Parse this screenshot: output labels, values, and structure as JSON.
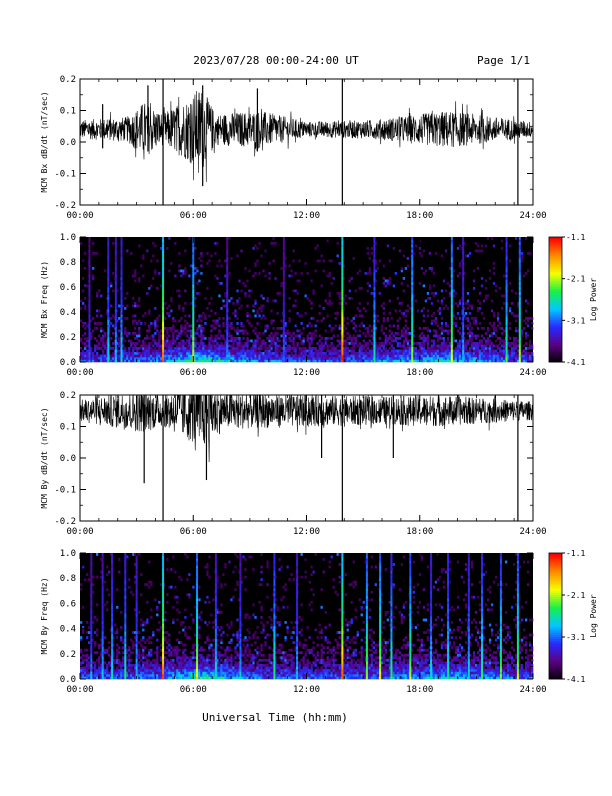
{
  "header": {
    "title": "2023/07/28  00:00-24:00 UT",
    "page": "Page 1/1"
  },
  "footer": {
    "xlabel": "Universal Time (hh:mm)"
  },
  "colors": {
    "background": "#ffffff",
    "axis": "#000000",
    "trace": "#000000",
    "spectrogram_background": "#000000",
    "colormap": [
      "#000000",
      "#5a0080",
      "#2a28ff",
      "#00c8ff",
      "#18f04a",
      "#f5ff00",
      "#ff8a00",
      "#ff0000"
    ]
  },
  "chart_data": [
    {
      "type": "line",
      "ylabel": "MCM Bx dB/dt (nT/sec)",
      "xlim": [
        0,
        24
      ],
      "ylim": [
        -0.2,
        0.2
      ],
      "x_ticks": [
        "00:00",
        "06:00",
        "12:00",
        "18:00",
        "24:00"
      ],
      "y_ticks": [
        "-0.2",
        "-0.1",
        "0.0",
        "0.1",
        "0.2"
      ],
      "y_tick_values": [
        -0.2,
        -0.1,
        0.0,
        0.1,
        0.2
      ],
      "baseline": 0.04,
      "typical_amplitude": 0.03,
      "envelope": [
        {
          "t": 0.0,
          "amp": 0.03
        },
        {
          "t": 2.5,
          "amp": 0.04
        },
        {
          "t": 3.4,
          "amp": 0.09
        },
        {
          "t": 4.4,
          "amp": 0.05
        },
        {
          "t": 5.7,
          "amp": 0.1
        },
        {
          "t": 6.4,
          "amp": 0.14
        },
        {
          "t": 7.2,
          "amp": 0.05
        },
        {
          "t": 9.5,
          "amp": 0.06
        },
        {
          "t": 12.0,
          "amp": 0.025
        },
        {
          "t": 15.5,
          "amp": 0.03
        },
        {
          "t": 19.5,
          "amp": 0.06
        },
        {
          "t": 22.0,
          "amp": 0.04
        },
        {
          "t": 24.0,
          "amp": 0.025
        }
      ],
      "spikes": [
        {
          "t": 4.4,
          "low": -0.2,
          "high": 0.2
        },
        {
          "t": 13.9,
          "low": -0.2,
          "high": 0.2
        },
        {
          "t": 23.2,
          "low": -0.2,
          "high": 0.2
        },
        {
          "t": 6.5,
          "low": -0.14,
          "high": 0.18
        },
        {
          "t": 3.6,
          "low": -0.03,
          "high": 0.18
        },
        {
          "t": 9.4,
          "low": -0.03,
          "high": 0.17
        },
        {
          "t": 1.2,
          "low": -0.02,
          "high": 0.12
        }
      ]
    },
    {
      "type": "heatmap",
      "ylabel": "MCM Bx Freq (Hz)",
      "xlim": [
        0,
        24
      ],
      "ylim": [
        0,
        1.0
      ],
      "x_ticks": [
        "00:00",
        "06:00",
        "12:00",
        "18:00",
        "24:00"
      ],
      "y_ticks": [
        "0.0",
        "0.2",
        "0.4",
        "0.6",
        "0.8",
        "1.0"
      ],
      "y_tick_values": [
        0.0,
        0.2,
        0.4,
        0.6,
        0.8,
        1.0
      ],
      "colorbar": {
        "label": "Log Power",
        "min": -4.1,
        "max": -1.1,
        "ticks": [
          "-1.1",
          "-2.1",
          "-3.1",
          "-4.1"
        ],
        "tick_values": [
          -1.1,
          -2.1,
          -3.1,
          -4.1
        ]
      },
      "stripes": [
        {
          "t": 0.5,
          "level": 0.35
        },
        {
          "t": 1.5,
          "level": 0.5
        },
        {
          "t": 1.9,
          "level": 0.45
        },
        {
          "t": 2.2,
          "level": 0.5
        },
        {
          "t": 4.4,
          "level": 0.95
        },
        {
          "t": 6.0,
          "level": 0.75
        },
        {
          "t": 7.8,
          "level": 0.4
        },
        {
          "t": 10.8,
          "level": 0.35
        },
        {
          "t": 13.9,
          "level": 1.0
        },
        {
          "t": 15.6,
          "level": 0.55
        },
        {
          "t": 17.6,
          "level": 0.7
        },
        {
          "t": 19.7,
          "level": 0.75
        },
        {
          "t": 20.3,
          "level": 0.45
        },
        {
          "t": 22.6,
          "level": 0.6
        },
        {
          "t": 23.3,
          "level": 0.7
        }
      ]
    },
    {
      "type": "line",
      "ylabel": "MCM By dB/dt (nT/sec)",
      "xlim": [
        0,
        24
      ],
      "ylim": [
        -0.2,
        0.2
      ],
      "x_ticks": [
        "00:00",
        "06:00",
        "12:00",
        "18:00",
        "24:00"
      ],
      "y_ticks": [
        "-0.2",
        "-0.1",
        "0.0",
        "0.1",
        "0.2"
      ],
      "y_tick_values": [
        -0.2,
        -0.1,
        0.0,
        0.1,
        0.2
      ],
      "baseline": 0.15,
      "typical_amplitude": 0.035,
      "envelope": [
        {
          "t": 0.0,
          "amp": 0.035
        },
        {
          "t": 3.3,
          "amp": 0.07
        },
        {
          "t": 4.4,
          "amp": 0.05
        },
        {
          "t": 5.5,
          "amp": 0.09
        },
        {
          "t": 6.6,
          "amp": 0.12
        },
        {
          "t": 7.6,
          "amp": 0.06
        },
        {
          "t": 12.5,
          "amp": 0.05
        },
        {
          "t": 16.0,
          "amp": 0.045
        },
        {
          "t": 19.0,
          "amp": 0.05
        },
        {
          "t": 24.0,
          "amp": 0.03
        }
      ],
      "spikes": [
        {
          "t": 4.4,
          "low": -0.2,
          "high": 0.2
        },
        {
          "t": 13.9,
          "low": -0.2,
          "high": 0.2
        },
        {
          "t": 23.2,
          "low": -0.2,
          "high": 0.2
        },
        {
          "t": 3.4,
          "low": -0.08,
          "high": 0.2
        },
        {
          "t": 6.7,
          "low": -0.07,
          "high": 0.2
        },
        {
          "t": 12.8,
          "low": 0.0,
          "high": 0.2
        },
        {
          "t": 16.6,
          "low": 0.0,
          "high": 0.2
        }
      ]
    },
    {
      "type": "heatmap",
      "ylabel": "MCM By Freq (Hz)",
      "xlim": [
        0,
        24
      ],
      "ylim": [
        0,
        1.0
      ],
      "x_ticks": [
        "00:00",
        "06:00",
        "12:00",
        "18:00",
        "24:00"
      ],
      "y_ticks": [
        "0.0",
        "0.2",
        "0.4",
        "0.6",
        "0.8",
        "1.0"
      ],
      "y_tick_values": [
        0.0,
        0.2,
        0.4,
        0.6,
        0.8,
        1.0
      ],
      "colorbar": {
        "label": "Log Power",
        "min": -4.1,
        "max": -1.1,
        "ticks": [
          "-1.1",
          "-2.1",
          "-3.1",
          "-4.1"
        ],
        "tick_values": [
          -1.1,
          -2.1,
          -3.1,
          -4.1
        ]
      },
      "stripes": [
        {
          "t": 0.6,
          "level": 0.4
        },
        {
          "t": 1.2,
          "level": 0.45
        },
        {
          "t": 1.7,
          "level": 0.5
        },
        {
          "t": 2.4,
          "level": 0.55
        },
        {
          "t": 3.0,
          "level": 0.45
        },
        {
          "t": 4.4,
          "level": 0.95
        },
        {
          "t": 6.2,
          "level": 0.75
        },
        {
          "t": 7.2,
          "level": 0.5
        },
        {
          "t": 8.5,
          "level": 0.45
        },
        {
          "t": 10.3,
          "level": 0.6
        },
        {
          "t": 11.5,
          "level": 0.45
        },
        {
          "t": 13.9,
          "level": 0.95
        },
        {
          "t": 15.2,
          "level": 0.7
        },
        {
          "t": 15.9,
          "level": 0.75
        },
        {
          "t": 16.5,
          "level": 0.6
        },
        {
          "t": 17.5,
          "level": 0.7
        },
        {
          "t": 18.6,
          "level": 0.5
        },
        {
          "t": 19.5,
          "level": 0.55
        },
        {
          "t": 20.6,
          "level": 0.5
        },
        {
          "t": 21.3,
          "level": 0.6
        },
        {
          "t": 22.3,
          "level": 0.65
        },
        {
          "t": 23.2,
          "level": 0.7
        }
      ]
    }
  ]
}
